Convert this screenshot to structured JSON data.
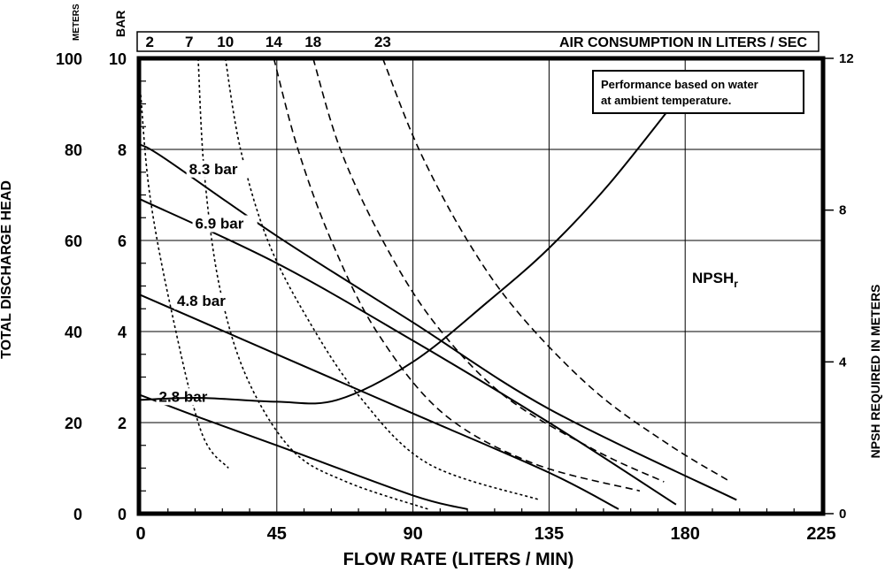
{
  "chart_data": {
    "type": "line",
    "title": "",
    "xlabel": "FLOW RATE (LITERS / MIN)",
    "ylabel_left": "TOTAL DISCHARGE HEAD",
    "ylabel_right": "NPSH REQUIRED IN METERS",
    "left_units_meters": "METERS",
    "left_units_bar": "BAR",
    "xlim": [
      0,
      225
    ],
    "ylim_meters": [
      0,
      100
    ],
    "ylim_bar": [
      0,
      10
    ],
    "ylim_npsh": [
      0,
      12
    ],
    "grid": true,
    "x_ticks": [
      "0",
      "45",
      "90",
      "135",
      "180",
      "225"
    ],
    "x_tick_values": [
      0,
      45,
      90,
      135,
      180,
      225
    ],
    "y_ticks_meters": [
      "0",
      "20",
      "40",
      "60",
      "80",
      "100"
    ],
    "y_tick_values_meters": [
      0,
      20,
      40,
      60,
      80,
      100
    ],
    "y_ticks_bar": [
      "0",
      "2",
      "4",
      "6",
      "8",
      "10"
    ],
    "y_ticks_npsh": [
      "0",
      "4",
      "8",
      "12"
    ],
    "y_tick_values_npsh": [
      0,
      4,
      8,
      12
    ],
    "air_consumption": {
      "label": "AIR CONSUMPTION IN LITERS / SEC",
      "ticks": [
        "2",
        "7",
        "10",
        "14",
        "18",
        "23"
      ],
      "tick_flow_positions": [
        3,
        16,
        28,
        44,
        57,
        80
      ]
    },
    "note": "Performance based on water at ambient temperature.",
    "pressure_curves": [
      {
        "name": "8.3 bar",
        "label_at": [
          16,
          75
        ],
        "points": [
          [
            0,
            81
          ],
          [
            8,
            78
          ],
          [
            45,
            61
          ],
          [
            90,
            42
          ],
          [
            135,
            23
          ],
          [
            197,
            3
          ]
        ]
      },
      {
        "name": "6.9 bar",
        "label_at": [
          18,
          63
        ],
        "points": [
          [
            0,
            69
          ],
          [
            45,
            55
          ],
          [
            90,
            38
          ],
          [
            135,
            20
          ],
          [
            177,
            2
          ]
        ]
      },
      {
        "name": "4.8 bar",
        "label_at": [
          12,
          46
        ],
        "points": [
          [
            0,
            48
          ],
          [
            45,
            35
          ],
          [
            90,
            22
          ],
          [
            135,
            9
          ],
          [
            158,
            1
          ]
        ]
      },
      {
        "name": "2.8 bar",
        "label_at": [
          6,
          25
        ],
        "points": [
          [
            0,
            26
          ],
          [
            20,
            21
          ],
          [
            45,
            15
          ],
          [
            90,
            4
          ],
          [
            108,
            1
          ]
        ]
      }
    ],
    "air_curves": [
      {
        "name": "2",
        "style": "dotted",
        "points": [
          [
            0,
            92
          ],
          [
            3,
            70
          ],
          [
            10,
            45
          ],
          [
            20,
            18
          ],
          [
            29,
            10
          ]
        ]
      },
      {
        "name": "7",
        "style": "dotted",
        "points": [
          [
            19,
            100
          ],
          [
            21,
            75
          ],
          [
            26,
            50
          ],
          [
            35,
            30
          ],
          [
            50,
            14
          ],
          [
            68,
            7
          ],
          [
            95,
            1
          ]
        ]
      },
      {
        "name": "10",
        "style": "dotted",
        "points": [
          [
            28,
            100
          ],
          [
            33,
            80
          ],
          [
            42,
            60
          ],
          [
            55,
            43
          ],
          [
            72,
            26
          ],
          [
            95,
            11
          ],
          [
            132,
            3
          ]
        ]
      },
      {
        "name": "14",
        "style": "dashed",
        "points": [
          [
            44,
            100
          ],
          [
            52,
            80
          ],
          [
            63,
            60
          ],
          [
            78,
            40
          ],
          [
            100,
            22
          ],
          [
            130,
            11
          ],
          [
            165,
            5
          ]
        ]
      },
      {
        "name": "18",
        "style": "dashed",
        "points": [
          [
            57,
            100
          ],
          [
            66,
            80
          ],
          [
            80,
            60
          ],
          [
            97,
            42
          ],
          [
            120,
            26
          ],
          [
            150,
            14
          ],
          [
            173,
            7
          ]
        ]
      },
      {
        "name": "23",
        "style": "dashed",
        "points": [
          [
            80,
            100
          ],
          [
            92,
            80
          ],
          [
            108,
            60
          ],
          [
            125,
            44
          ],
          [
            150,
            27
          ],
          [
            175,
            15
          ],
          [
            195,
            7
          ]
        ]
      }
    ],
    "npsh_curve": {
      "name": "NPSHr",
      "label_main": "NPSH",
      "label_sub": "r",
      "units": "meters",
      "points": [
        [
          0,
          3.0
        ],
        [
          20,
          3.05
        ],
        [
          45,
          2.95
        ],
        [
          65,
          3.0
        ],
        [
          90,
          4.0
        ],
        [
          115,
          5.6
        ],
        [
          135,
          7.0
        ],
        [
          155,
          8.7
        ],
        [
          178,
          11.0
        ]
      ]
    }
  }
}
